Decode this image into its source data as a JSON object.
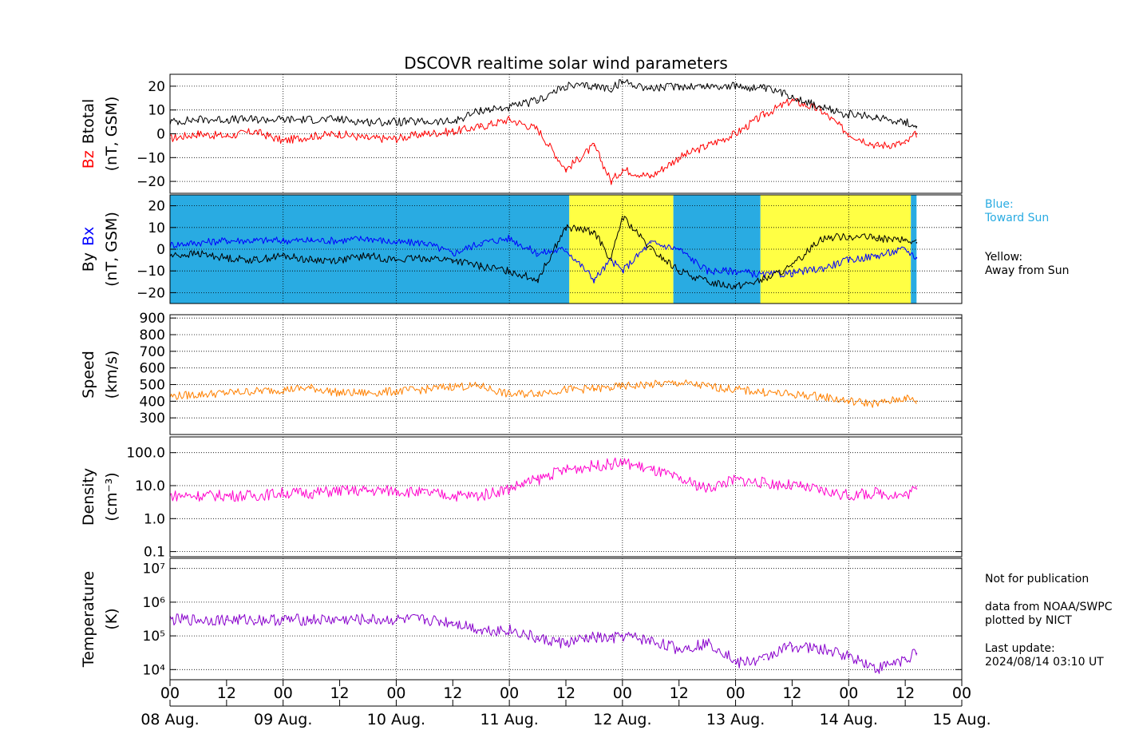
{
  "title": "DSCOVR realtime solar wind parameters",
  "colors": {
    "bz": "#ff0000",
    "btotal": "#000000",
    "bx": "#0000ff",
    "by": "#000000",
    "speed": "#ff8000",
    "density": "#ff00cc",
    "temperature": "#8800cc",
    "toward_sun_bg": "#29abe2",
    "away_sun_bg": "#ffff44",
    "blue_note": "#29abe2"
  },
  "x_axis": {
    "hour_ticks": [
      "00",
      "12",
      "00",
      "12",
      "00",
      "12",
      "00",
      "12",
      "00",
      "12",
      "00",
      "12",
      "00",
      "12",
      "00"
    ],
    "date_labels": [
      "08 Aug.",
      "09 Aug.",
      "10 Aug.",
      "11 Aug.",
      "12 Aug.",
      "13 Aug.",
      "14 Aug.",
      "15 Aug."
    ]
  },
  "panels": [
    {
      "key": "mag",
      "ylabel_parts": [
        "Bz",
        "Btotal"
      ],
      "unit": "(nT, GSM)",
      "tick_labels": [
        "20",
        "10",
        "0",
        "−10",
        "−20"
      ]
    },
    {
      "key": "bxby",
      "ylabel_parts": [
        "By",
        "Bx"
      ],
      "unit": "(nT, GSM)",
      "tick_labels": [
        "20",
        "10",
        "0",
        "−10",
        "−20"
      ]
    },
    {
      "key": "speed",
      "ylabel": "Speed",
      "unit": "(km/s)",
      "tick_labels": [
        "900",
        "800",
        "700",
        "600",
        "500",
        "400",
        "300"
      ]
    },
    {
      "key": "density",
      "ylabel": "Density",
      "unit": "(cm⁻³)",
      "tick_labels": [
        "100.0",
        "10.0",
        "1.0",
        "0.1"
      ]
    },
    {
      "key": "temperature",
      "ylabel": "Temperature",
      "unit": "(K)",
      "tick_labels": [
        "10⁷",
        "10⁶",
        "10⁵",
        "10⁴"
      ]
    }
  ],
  "side_notes": {
    "blue_note": "Blue:\nToward Sun",
    "yellow_note": "Yellow:\nAway from Sun",
    "publication_note": "Not for publication",
    "source_note": "data from NOAA/SWPC\nplotted by NICT",
    "update_note": "Last update:\n2024/08/14 03:10 UT"
  },
  "chart_data": [
    {
      "type": "line",
      "x_unit": "days since 2024-08-08 00:00 UT",
      "xlim": [
        0,
        7
      ],
      "ylim": [
        -25,
        25
      ],
      "series": [
        {
          "name": "Bz",
          "x": [
            0,
            0.25,
            0.5,
            0.75,
            1,
            1.25,
            1.5,
            1.75,
            2,
            2.25,
            2.5,
            2.75,
            3,
            3.25,
            3.5,
            3.75,
            3.9,
            4,
            4.25,
            4.5,
            4.75,
            5,
            5.25,
            5.5,
            5.75,
            6,
            6.25,
            6.5,
            6.6
          ],
          "y": [
            -2,
            0,
            -1,
            1,
            -3,
            -1,
            0,
            -2,
            -2,
            0,
            1,
            3,
            6,
            2,
            -15,
            -5,
            -20,
            -15,
            -18,
            -10,
            -5,
            0,
            8,
            14,
            10,
            0,
            -5,
            -4,
            0
          ]
        },
        {
          "name": "Btotal",
          "x": [
            0,
            0.25,
            0.5,
            0.75,
            1,
            1.25,
            1.5,
            1.75,
            2,
            2.25,
            2.5,
            2.75,
            3,
            3.25,
            3.5,
            3.75,
            3.9,
            4,
            4.25,
            4.5,
            4.75,
            5,
            5.25,
            5.5,
            5.75,
            6,
            6.25,
            6.5,
            6.6
          ],
          "y": [
            5,
            6,
            6,
            6,
            6,
            6,
            6,
            5,
            5,
            5,
            5,
            10,
            11,
            14,
            20,
            20,
            19,
            22,
            19,
            20,
            20,
            20,
            19,
            16,
            11,
            8,
            7,
            5,
            3
          ]
        }
      ]
    },
    {
      "type": "line",
      "x_unit": "days since 2024-08-08 00:00 UT",
      "xlim": [
        0,
        7
      ],
      "ylim": [
        -25,
        25
      ],
      "series": [
        {
          "name": "Bx",
          "x": [
            0,
            0.25,
            0.5,
            0.75,
            1,
            1.25,
            1.5,
            1.75,
            2,
            2.25,
            2.5,
            2.75,
            3,
            3.25,
            3.5,
            3.75,
            3.9,
            4,
            4.25,
            4.5,
            4.75,
            5,
            5.25,
            5.5,
            5.75,
            6,
            6.25,
            6.5,
            6.6
          ],
          "y": [
            2,
            3,
            4,
            4,
            4,
            4,
            4,
            5,
            3,
            3,
            -2,
            3,
            5,
            -2,
            0,
            -14,
            -5,
            -10,
            3,
            0,
            -10,
            -10,
            -12,
            -11,
            -9,
            -5,
            -3,
            0,
            -4
          ]
        },
        {
          "name": "By",
          "x": [
            0,
            0.25,
            0.5,
            0.75,
            1,
            1.25,
            1.5,
            1.75,
            2,
            2.25,
            2.5,
            2.75,
            3,
            3.25,
            3.5,
            3.75,
            3.9,
            4,
            4.25,
            4.5,
            4.75,
            5,
            5.25,
            5.5,
            5.75,
            6,
            6.25,
            6.5,
            6.6
          ],
          "y": [
            -3,
            -2,
            -4,
            -5,
            -3,
            -5,
            -5,
            -3,
            -5,
            -4,
            -5,
            -8,
            -10,
            -14,
            10,
            8,
            -5,
            15,
            0,
            -10,
            -15,
            -17,
            -14,
            -8,
            5,
            6,
            5,
            4,
            3
          ]
        }
      ],
      "polarity_bands": [
        {
          "from": 0,
          "to": 3.53,
          "state": "toward_sun"
        },
        {
          "from": 3.53,
          "to": 4.45,
          "state": "away_sun"
        },
        {
          "from": 4.45,
          "to": 5.22,
          "state": "toward_sun"
        },
        {
          "from": 5.22,
          "to": 6.55,
          "state": "away_sun"
        },
        {
          "from": 6.55,
          "to": 6.6,
          "state": "toward_sun"
        }
      ]
    },
    {
      "type": "line",
      "x_unit": "days since 2024-08-08 00:00 UT",
      "xlim": [
        0,
        7
      ],
      "ylim": [
        200,
        920
      ],
      "series": [
        {
          "name": "Speed",
          "x": [
            0,
            0.25,
            0.5,
            0.75,
            1,
            1.25,
            1.5,
            1.75,
            2,
            2.25,
            2.5,
            2.75,
            3,
            3.25,
            3.5,
            3.75,
            3.9,
            4,
            4.25,
            4.5,
            4.75,
            5,
            5.25,
            5.5,
            5.75,
            6,
            6.25,
            6.5,
            6.6
          ],
          "y": [
            430,
            440,
            450,
            460,
            470,
            480,
            450,
            450,
            460,
            470,
            490,
            490,
            440,
            450,
            470,
            475,
            480,
            490,
            500,
            510,
            490,
            470,
            455,
            440,
            430,
            400,
            385,
            420,
            400
          ]
        }
      ]
    },
    {
      "type": "line",
      "x_unit": "days since 2024-08-08 00:00 UT",
      "xlim": [
        0,
        7
      ],
      "ylim": [
        0.07,
        300
      ],
      "y_scale": "log",
      "series": [
        {
          "name": "Density",
          "x": [
            0,
            0.25,
            0.5,
            0.75,
            1,
            1.25,
            1.5,
            1.75,
            2,
            2.25,
            2.5,
            2.75,
            3,
            3.25,
            3.5,
            3.75,
            3.9,
            4,
            4.25,
            4.5,
            4.75,
            5,
            5.25,
            5.5,
            5.75,
            6,
            6.25,
            6.5,
            6.6
          ],
          "y": [
            5,
            5,
            5,
            5,
            6,
            6,
            7,
            7,
            7,
            6,
            5,
            5,
            8,
            15,
            30,
            40,
            45,
            50,
            30,
            15,
            8,
            15,
            12,
            10,
            7,
            5,
            6,
            5,
            8
          ]
        }
      ]
    },
    {
      "type": "line",
      "x_unit": "days since 2024-08-08 00:00 UT",
      "xlim": [
        0,
        7
      ],
      "ylim": [
        5000,
        20000000
      ],
      "y_scale": "log",
      "series": [
        {
          "name": "Temperature",
          "x": [
            0,
            0.25,
            0.5,
            0.75,
            1,
            1.25,
            1.5,
            1.75,
            2,
            2.25,
            2.5,
            2.75,
            3,
            3.25,
            3.5,
            3.75,
            3.9,
            4,
            4.25,
            4.5,
            4.75,
            5,
            5.25,
            5.5,
            5.75,
            6,
            6.25,
            6.5,
            6.6
          ],
          "y": [
            300000,
            300000,
            300000,
            300000,
            300000,
            300000,
            300000,
            300000,
            300000,
            300000,
            250000,
            150000,
            150000,
            80000,
            60000,
            90000,
            80000,
            100000,
            70000,
            40000,
            60000,
            15000,
            20000,
            50000,
            40000,
            25000,
            10000,
            20000,
            30000
          ]
        }
      ]
    }
  ]
}
